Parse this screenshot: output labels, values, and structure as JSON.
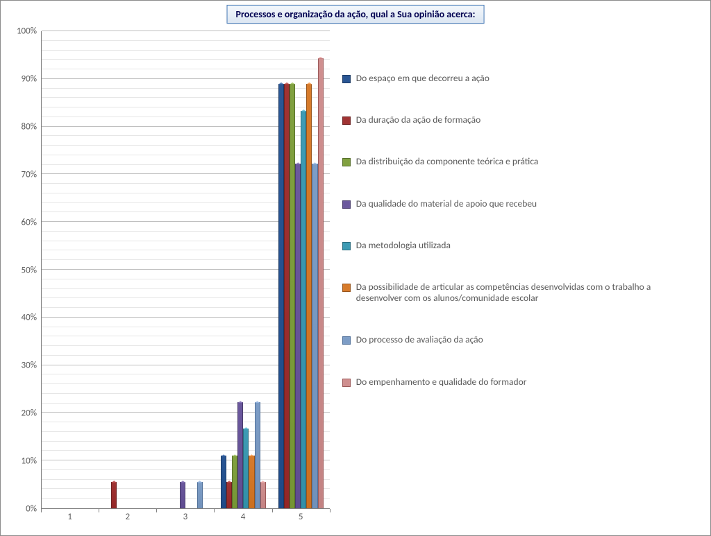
{
  "chart": {
    "type": "bar",
    "title": "Processos e organização da ação, qual a Sua opinião acerca:",
    "title_fontsize": 14,
    "title_border_color": "#4a7ebb",
    "title_bg_top": "#f4f8fc",
    "title_bg_bottom": "#dce6f2",
    "background_color": "#ffffff",
    "grid_major_color": "#bfbfbf",
    "grid_minor_color": "#e6e6e6",
    "axis_color": "#808080",
    "label_color": "#595959",
    "label_fontsize": 13,
    "ylim": [
      0,
      100
    ],
    "ytick_major_step": 10,
    "ytick_minor_step": 2,
    "y_suffix": "%",
    "categories": [
      "1",
      "2",
      "3",
      "4",
      "5"
    ],
    "bar_group_width": 0.78,
    "series": [
      {
        "label": "Do espaço em que decorreu a ação",
        "color": "#2a5694",
        "borderColor": "#1c3a64",
        "values": [
          0,
          0,
          0,
          11,
          89
        ]
      },
      {
        "label": "Da duração da ação de formação",
        "color": "#a03333",
        "borderColor": "#6e2222",
        "values": [
          0,
          5.5,
          0,
          5.5,
          89
        ]
      },
      {
        "label": "Da distribuição da componente teórica e prática",
        "color": "#81a140",
        "borderColor": "#57702a",
        "values": [
          0,
          0,
          0,
          11,
          89
        ]
      },
      {
        "label": "Da qualidade do material de apoio que recebeu",
        "color": "#6b589d",
        "borderColor": "#493c6c",
        "values": [
          0,
          0,
          5.5,
          22.2,
          72.2
        ]
      },
      {
        "label": "Da metodologia utilizada",
        "color": "#3e9bb4",
        "borderColor": "#2a6c7e",
        "values": [
          0,
          0,
          0,
          16.7,
          83.3
        ]
      },
      {
        "label": "Da possibilidade de articular as competências desenvolvidas com o trabalho a desenvolver com os alunos/comunidade escolar",
        "color": "#d77b2b",
        "borderColor": "#98551c",
        "values": [
          0,
          0,
          0,
          11,
          89
        ]
      },
      {
        "label": "Do processo de avaliação da ação",
        "color": "#7d9dc6",
        "borderColor": "#51719a",
        "values": [
          0,
          0,
          5.5,
          22.2,
          72.2
        ]
      },
      {
        "label": "Do empenhamento e qualidade do formador",
        "color": "#cf8f8f",
        "borderColor": "#9c5a5a",
        "values": [
          0,
          0,
          0,
          5.5,
          94.4
        ]
      }
    ]
  }
}
